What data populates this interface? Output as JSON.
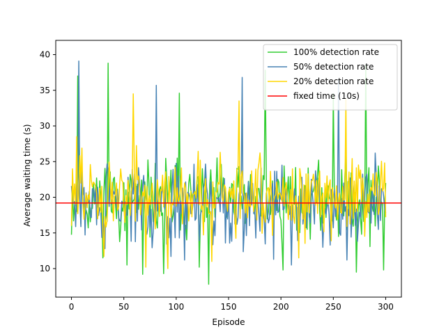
{
  "chart_data": {
    "type": "line",
    "title": "",
    "xlabel": "Episode",
    "ylabel": "Average waiting time (s)",
    "xlim": [
      -15,
      315
    ],
    "ylim": [
      6,
      42
    ],
    "x_ticks": [
      0,
      50,
      100,
      150,
      200,
      250,
      300
    ],
    "y_ticks": [
      10,
      15,
      20,
      25,
      30,
      35,
      40
    ],
    "grid": false,
    "legend_position": "top-right",
    "episodes": 301,
    "series": [
      {
        "name": "100% detection rate",
        "color": "#32cd32",
        "summary": {
          "mean": 19.5,
          "min": 7.8,
          "max": 38.8,
          "noise_seed": 11
        },
        "anchors": [
          [
            6,
            37
          ],
          [
            35,
            38.8
          ],
          [
            53,
            10.5
          ],
          [
            68,
            9.2
          ],
          [
            88,
            9.3
          ],
          [
            103,
            34.6
          ],
          [
            122,
            10.2
          ],
          [
            131,
            7.8
          ],
          [
            185,
            37.8
          ],
          [
            202,
            9.8
          ],
          [
            250,
            34.5
          ],
          [
            272,
            9.5
          ],
          [
            281,
            38.5
          ],
          [
            298,
            9.8
          ],
          [
            300,
            22
          ]
        ]
      },
      {
        "name": "50% detection rate",
        "color": "#4682b4",
        "summary": {
          "mean": 19.0,
          "min": 9.5,
          "max": 39.1,
          "noise_seed": 29
        },
        "anchors": [
          [
            7,
            39.1
          ],
          [
            32,
            12.8
          ],
          [
            81,
            35.7
          ],
          [
            95,
            11.7
          ],
          [
            108,
            11.2
          ],
          [
            163,
            36.8
          ],
          [
            193,
            11.3
          ],
          [
            210,
            10.5
          ],
          [
            255,
            36.5
          ],
          [
            263,
            11.2
          ],
          [
            290,
            26.2
          ],
          [
            300,
            17.8
          ]
        ]
      },
      {
        "name": "20% detection rate",
        "color": "#ffd700",
        "summary": {
          "mean": 20.5,
          "min": 9.9,
          "max": 34.5,
          "noise_seed": 47
        },
        "anchors": [
          [
            0,
            16
          ],
          [
            5,
            28.5
          ],
          [
            31,
            11.7
          ],
          [
            59,
            34.5
          ],
          [
            71,
            10.2
          ],
          [
            92,
            10
          ],
          [
            134,
            11
          ],
          [
            160,
            33.5
          ],
          [
            217,
            11.5
          ],
          [
            262,
            33.7
          ],
          [
            300,
            17.2
          ]
        ]
      }
    ],
    "reference_line": {
      "name": "fixed time (10s)",
      "color": "#ff0000",
      "value": 19.2
    }
  }
}
